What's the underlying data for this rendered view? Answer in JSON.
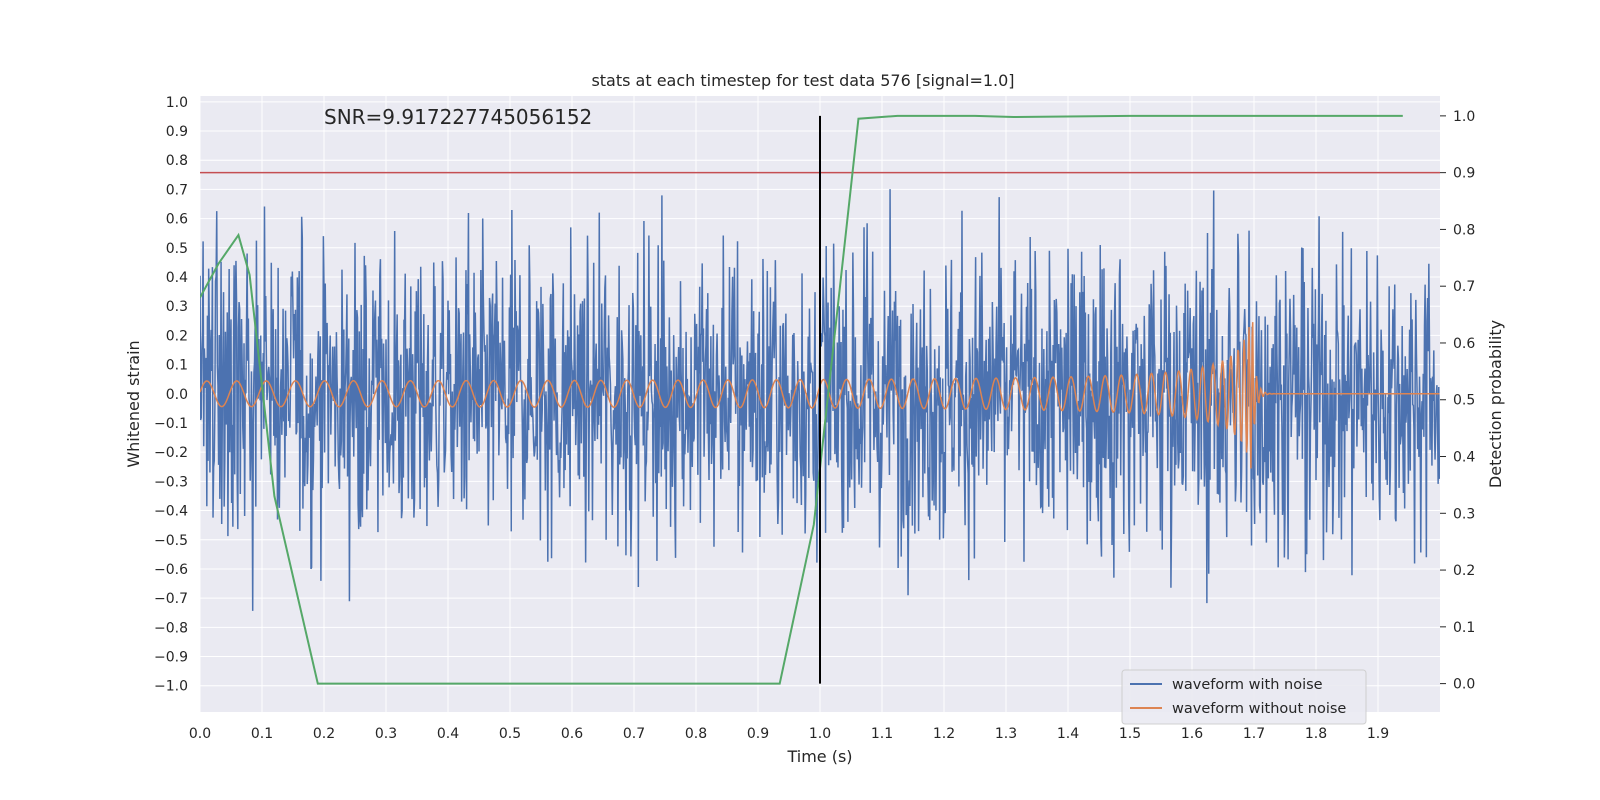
{
  "chart_data": {
    "type": "line",
    "title": "stats at each timestep for test data 576 [signal=1.0]",
    "xlabel": "Time (s)",
    "ylabel_left": "Whitened strain",
    "ylabel_right": "Detection probability",
    "annotation": "SNR=9.917227745056152",
    "xlim": [
      0.0,
      2.0
    ],
    "ylim_left": [
      -1.09,
      1.02
    ],
    "ylim_right": [
      -0.05,
      1.035
    ],
    "x_ticks": [
      "0.0",
      "0.1",
      "0.2",
      "0.3",
      "0.4",
      "0.5",
      "0.6",
      "0.7",
      "0.8",
      "0.9",
      "1.0",
      "1.1",
      "1.2",
      "1.3",
      "1.4",
      "1.5",
      "1.6",
      "1.7",
      "1.8",
      "1.9"
    ],
    "y_ticks_left": [
      "1.0",
      "0.9",
      "0.8",
      "0.7",
      "0.6",
      "0.5",
      "0.4",
      "0.3",
      "0.2",
      "0.1",
      "0.0",
      "−0.1",
      "−0.2",
      "−0.3",
      "−0.4",
      "−0.5",
      "−0.6",
      "−0.7",
      "−0.8",
      "−0.9",
      "−1.0"
    ],
    "y_ticks_right": [
      "1.0",
      "0.9",
      "0.8",
      "0.7",
      "0.6",
      "0.5",
      "0.4",
      "0.3",
      "0.2",
      "0.1",
      "0.0"
    ],
    "grid": true,
    "legend_position": "lower-right",
    "series": [
      {
        "name": "waveform with noise",
        "color": "#4c72b0",
        "axis": "left",
        "noise_amplitude": 0.3,
        "range": [
          -1.0,
          0.9
        ]
      },
      {
        "name": "waveform without noise",
        "color": "#dd8452",
        "axis": "left",
        "chirp_start_amp": 0.04,
        "chirp_peak_amp": 0.32,
        "merger_time": 1.7
      }
    ],
    "probability": {
      "color": "#55a868",
      "axis": "right",
      "x": [
        0.0,
        0.03,
        0.062,
        0.08,
        0.12,
        0.19,
        0.25,
        0.5,
        0.75,
        0.935,
        0.99,
        1.062,
        1.125,
        1.25,
        1.312,
        1.5,
        1.75,
        1.94
      ],
      "y": [
        0.68,
        0.74,
        0.79,
        0.72,
        0.33,
        0.0,
        0.0,
        0.0,
        0.0,
        0.0,
        0.28,
        0.995,
        1.0,
        1.0,
        0.998,
        1.0,
        1.0,
        1.0
      ]
    },
    "threshold": {
      "value": 0.9,
      "axis": "right",
      "color": "#c44e52"
    },
    "vertical_marker": {
      "x": 1.0,
      "color": "#000000"
    }
  }
}
